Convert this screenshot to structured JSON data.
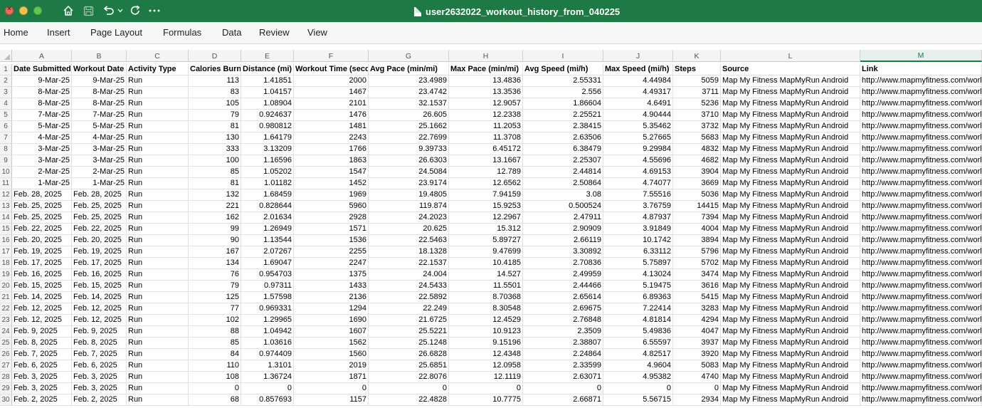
{
  "window": {
    "title": "user2632022_workout_history_from_040225"
  },
  "ribbon": {
    "tabs": [
      "Home",
      "Insert",
      "Page Layout",
      "Formulas",
      "Data",
      "Review",
      "View"
    ]
  },
  "sheet": {
    "columns": [
      "A",
      "B",
      "C",
      "D",
      "E",
      "F",
      "G",
      "H",
      "I",
      "J",
      "K",
      "L",
      "M"
    ],
    "selected_column": "M",
    "headers": [
      "Date Submitted",
      "Workout Date",
      "Activity Type",
      "Calories Burned (kCal)",
      "Distance (mi)",
      "Workout Time (seconds)",
      "Avg Pace (min/mi)",
      "Max Pace (min/mi)",
      "Avg Speed (mi/h)",
      "Max Speed (mi/h)",
      "Steps",
      "Source",
      "Link"
    ],
    "rows": [
      [
        "9-Mar-25",
        "9-Mar-25",
        "Run",
        "113",
        "1.41851",
        "2000",
        "23.4989",
        "13.4836",
        "2.55331",
        "4.44984",
        "5059",
        "Map My Fitness MapMyRun Android",
        "http://www.mapmyfitness.com/workout/"
      ],
      [
        "8-Mar-25",
        "8-Mar-25",
        "Run",
        "83",
        "1.04157",
        "1467",
        "23.4742",
        "13.3536",
        "2.556",
        "4.49317",
        "3711",
        "Map My Fitness MapMyRun Android",
        "http://www.mapmyfitness.com/workout/"
      ],
      [
        "8-Mar-25",
        "8-Mar-25",
        "Run",
        "105",
        "1.08904",
        "2101",
        "32.1537",
        "12.9057",
        "1.86604",
        "4.6491",
        "5236",
        "Map My Fitness MapMyRun Android",
        "http://www.mapmyfitness.com/workout/"
      ],
      [
        "7-Mar-25",
        "7-Mar-25",
        "Run",
        "79",
        "0.924637",
        "1476",
        "26.605",
        "12.2338",
        "2.25521",
        "4.90444",
        "3710",
        "Map My Fitness MapMyRun Android",
        "http://www.mapmyfitness.com/workout/"
      ],
      [
        "5-Mar-25",
        "5-Mar-25",
        "Run",
        "81",
        "0.980812",
        "1481",
        "25.1662",
        "11.2053",
        "2.38415",
        "5.35462",
        "3732",
        "Map My Fitness MapMyRun Android",
        "http://www.mapmyfitness.com/workout/"
      ],
      [
        "4-Mar-25",
        "4-Mar-25",
        "Run",
        "130",
        "1.64179",
        "2243",
        "22.7699",
        "11.3708",
        "2.63506",
        "5.27665",
        "5683",
        "Map My Fitness MapMyRun Android",
        "http://www.mapmyfitness.com/workout/"
      ],
      [
        "3-Mar-25",
        "3-Mar-25",
        "Run",
        "333",
        "3.13209",
        "1766",
        "9.39733",
        "6.45172",
        "6.38479",
        "9.29984",
        "4832",
        "Map My Fitness MapMyRun Android",
        "http://www.mapmyfitness.com/workout/"
      ],
      [
        "3-Mar-25",
        "3-Mar-25",
        "Run",
        "100",
        "1.16596",
        "1863",
        "26.6303",
        "13.1667",
        "2.25307",
        "4.55696",
        "4682",
        "Map My Fitness MapMyRun Android",
        "http://www.mapmyfitness.com/workout/"
      ],
      [
        "2-Mar-25",
        "2-Mar-25",
        "Run",
        "85",
        "1.05202",
        "1547",
        "24.5084",
        "12.789",
        "2.44814",
        "4.69153",
        "3904",
        "Map My Fitness MapMyRun Android",
        "http://www.mapmyfitness.com/workout/"
      ],
      [
        "1-Mar-25",
        "1-Mar-25",
        "Run",
        "81",
        "1.01182",
        "1452",
        "23.9174",
        "12.6562",
        "2.50864",
        "4.74077",
        "3669",
        "Map My Fitness MapMyRun Android",
        "http://www.mapmyfitness.com/workout/"
      ],
      [
        "Feb. 28, 2025",
        "Feb. 28, 2025",
        "Run",
        "132",
        "1.68459",
        "1969",
        "19.4805",
        "7.94159",
        "3.08",
        "7.55516",
        "5036",
        "Map My Fitness MapMyRun Android",
        "http://www.mapmyfitness.com/workout/"
      ],
      [
        "Feb. 25, 2025",
        "Feb. 25, 2025",
        "Run",
        "221",
        "0.828644",
        "5960",
        "119.874",
        "15.9253",
        "0.500524",
        "3.76759",
        "14415",
        "Map My Fitness MapMyRun Android",
        "http://www.mapmyfitness.com/workout/"
      ],
      [
        "Feb. 25, 2025",
        "Feb. 25, 2025",
        "Run",
        "162",
        "2.01634",
        "2928",
        "24.2023",
        "12.2967",
        "2.47911",
        "4.87937",
        "7394",
        "Map My Fitness MapMyRun Android",
        "http://www.mapmyfitness.com/workout/"
      ],
      [
        "Feb. 22, 2025",
        "Feb. 22, 2025",
        "Run",
        "99",
        "1.26949",
        "1571",
        "20.625",
        "15.312",
        "2.90909",
        "3.91849",
        "4004",
        "Map My Fitness MapMyRun Android",
        "http://www.mapmyfitness.com/workout/"
      ],
      [
        "Feb. 20, 2025",
        "Feb. 20, 2025",
        "Run",
        "90",
        "1.13544",
        "1536",
        "22.5463",
        "5.89727",
        "2.66119",
        "10.1742",
        "3894",
        "Map My Fitness MapMyRun Android",
        "http://www.mapmyfitness.com/workout/"
      ],
      [
        "Feb. 19, 2025",
        "Feb. 19, 2025",
        "Run",
        "167",
        "2.07267",
        "2255",
        "18.1328",
        "9.47699",
        "3.30892",
        "6.33112",
        "5796",
        "Map My Fitness MapMyRun Android",
        "http://www.mapmyfitness.com/workout/"
      ],
      [
        "Feb. 17, 2025",
        "Feb. 17, 2025",
        "Run",
        "134",
        "1.69047",
        "2247",
        "22.1537",
        "10.4185",
        "2.70836",
        "5.75897",
        "5702",
        "Map My Fitness MapMyRun Android",
        "http://www.mapmyfitness.com/workout/"
      ],
      [
        "Feb. 16, 2025",
        "Feb. 16, 2025",
        "Run",
        "76",
        "0.954703",
        "1375",
        "24.004",
        "14.527",
        "2.49959",
        "4.13024",
        "3474",
        "Map My Fitness MapMyRun Android",
        "http://www.mapmyfitness.com/workout/"
      ],
      [
        "Feb. 15, 2025",
        "Feb. 15, 2025",
        "Run",
        "79",
        "0.97311",
        "1433",
        "24.5433",
        "11.5501",
        "2.44466",
        "5.19475",
        "3616",
        "Map My Fitness MapMyRun Android",
        "http://www.mapmyfitness.com/workout/"
      ],
      [
        "Feb. 14, 2025",
        "Feb. 14, 2025",
        "Run",
        "125",
        "1.57598",
        "2136",
        "22.5892",
        "8.70368",
        "2.65614",
        "6.89363",
        "5415",
        "Map My Fitness MapMyRun Android",
        "http://www.mapmyfitness.com/workout/"
      ],
      [
        "Feb. 12, 2025",
        "Feb. 12, 2025",
        "Run",
        "77",
        "0.969331",
        "1294",
        "22.249",
        "8.30548",
        "2.69675",
        "7.22414",
        "3283",
        "Map My Fitness MapMyRun Android",
        "http://www.mapmyfitness.com/workout/"
      ],
      [
        "Feb. 12, 2025",
        "Feb. 12, 2025",
        "Run",
        "102",
        "1.29965",
        "1690",
        "21.6725",
        "12.4529",
        "2.76848",
        "4.81814",
        "4294",
        "Map My Fitness MapMyRun Android",
        "http://www.mapmyfitness.com/workout/"
      ],
      [
        "Feb. 9, 2025",
        "Feb. 9, 2025",
        "Run",
        "88",
        "1.04942",
        "1607",
        "25.5221",
        "10.9123",
        "2.3509",
        "5.49836",
        "4047",
        "Map My Fitness MapMyRun Android",
        "http://www.mapmyfitness.com/workout/"
      ],
      [
        "Feb. 8, 2025",
        "Feb. 8, 2025",
        "Run",
        "85",
        "1.03616",
        "1562",
        "25.1248",
        "9.15196",
        "2.38807",
        "6.55597",
        "3937",
        "Map My Fitness MapMyRun Android",
        "http://www.mapmyfitness.com/workout/"
      ],
      [
        "Feb. 7, 2025",
        "Feb. 7, 2025",
        "Run",
        "84",
        "0.974409",
        "1560",
        "26.6828",
        "12.4348",
        "2.24864",
        "4.82517",
        "3920",
        "Map My Fitness MapMyRun Android",
        "http://www.mapmyfitness.com/workout/"
      ],
      [
        "Feb. 6, 2025",
        "Feb. 6, 2025",
        "Run",
        "110",
        "1.3101",
        "2019",
        "25.6851",
        "12.0958",
        "2.33599",
        "4.9604",
        "5083",
        "Map My Fitness MapMyRun Android",
        "http://www.mapmyfitness.com/workout/"
      ],
      [
        "Feb. 3, 2025",
        "Feb. 3, 2025",
        "Run",
        "108",
        "1.36724",
        "1871",
        "22.8076",
        "12.1119",
        "2.63071",
        "4.95382",
        "4740",
        "Map My Fitness MapMyRun Android",
        "http://www.mapmyfitness.com/workout/"
      ],
      [
        "Feb. 3, 2025",
        "Feb. 3, 2025",
        "Run",
        "0",
        "0",
        "0",
        "0",
        "0",
        "0",
        "0",
        "0",
        "Map My Fitness MapMyRun Android",
        "http://www.mapmyfitness.com/workout/"
      ],
      [
        "Feb. 2, 2025",
        "Feb. 2, 2025",
        "Run",
        "68",
        "0.857693",
        "1157",
        "22.4828",
        "10.7775",
        "2.66871",
        "5.56715",
        "2934",
        "Map My Fitness MapMyRun Android",
        "http://www.mapmyfitness.com/workout/"
      ]
    ]
  }
}
